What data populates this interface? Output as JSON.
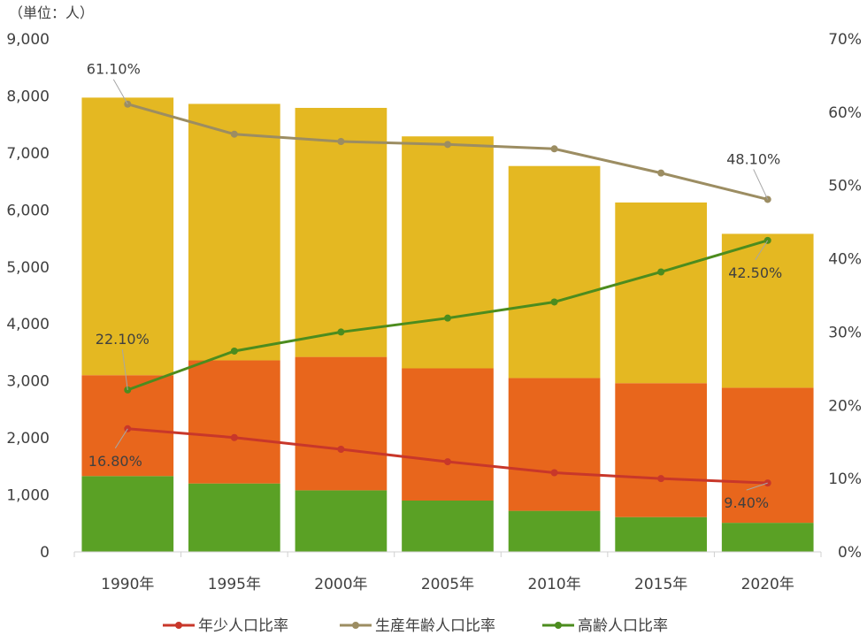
{
  "chart_data": {
    "type": "bar",
    "stacked": true,
    "unit_label": "（単位：人）",
    "categories": [
      "1990年",
      "1995年",
      "2000年",
      "2005年",
      "2010年",
      "2015年",
      "2020年"
    ],
    "left_axis": {
      "ylim": [
        0,
        9000
      ],
      "ticks": [
        0,
        1000,
        2000,
        3000,
        4000,
        5000,
        6000,
        7000,
        8000,
        9000
      ],
      "tick_labels": [
        "0",
        "1,000",
        "2,000",
        "3,000",
        "4,000",
        "5,000",
        "6,000",
        "7,000",
        "8,000",
        "9,000"
      ]
    },
    "right_axis": {
      "ylim": [
        0,
        70
      ],
      "ticks": [
        0,
        10,
        20,
        30,
        40,
        50,
        60,
        70
      ],
      "tick_labels": [
        "0%",
        "10%",
        "20%",
        "30%",
        "40%",
        "50%",
        "60%",
        "70%"
      ]
    },
    "bar_series": [
      {
        "color": "#5aa125",
        "values": [
          1330,
          1200,
          1080,
          900,
          720,
          610,
          510
        ]
      },
      {
        "color": "#e8661c",
        "values": [
          1770,
          2160,
          2340,
          2320,
          2330,
          2350,
          2370
        ]
      },
      {
        "color": "#e4b822",
        "values": [
          4870,
          4500,
          4370,
          4070,
          3720,
          3170,
          2700
        ]
      }
    ],
    "line_series": [
      {
        "name": "年少人口比率",
        "color": "#c8372a",
        "values": [
          16.8,
          15.6,
          14.0,
          12.3,
          10.8,
          10.0,
          9.4
        ]
      },
      {
        "name": "生産年齢人口比率",
        "color": "#9c8d62",
        "values": [
          61.1,
          57.0,
          56.0,
          55.6,
          55.0,
          51.7,
          48.1
        ]
      },
      {
        "name": "高齢人口比率",
        "color": "#4c8c1e",
        "values": [
          22.1,
          27.4,
          30.0,
          31.9,
          34.1,
          38.2,
          42.5
        ]
      }
    ],
    "data_labels": [
      {
        "series": 0,
        "index": 0,
        "text": "16.80%"
      },
      {
        "series": 0,
        "index": 6,
        "text": "9.40%"
      },
      {
        "series": 1,
        "index": 0,
        "text": "61.10%"
      },
      {
        "series": 1,
        "index": 6,
        "text": "48.10%"
      },
      {
        "series": 2,
        "index": 0,
        "text": "22.10%"
      },
      {
        "series": 2,
        "index": 6,
        "text": "42.50%"
      }
    ],
    "legend_position": "bottom",
    "grid": false
  }
}
